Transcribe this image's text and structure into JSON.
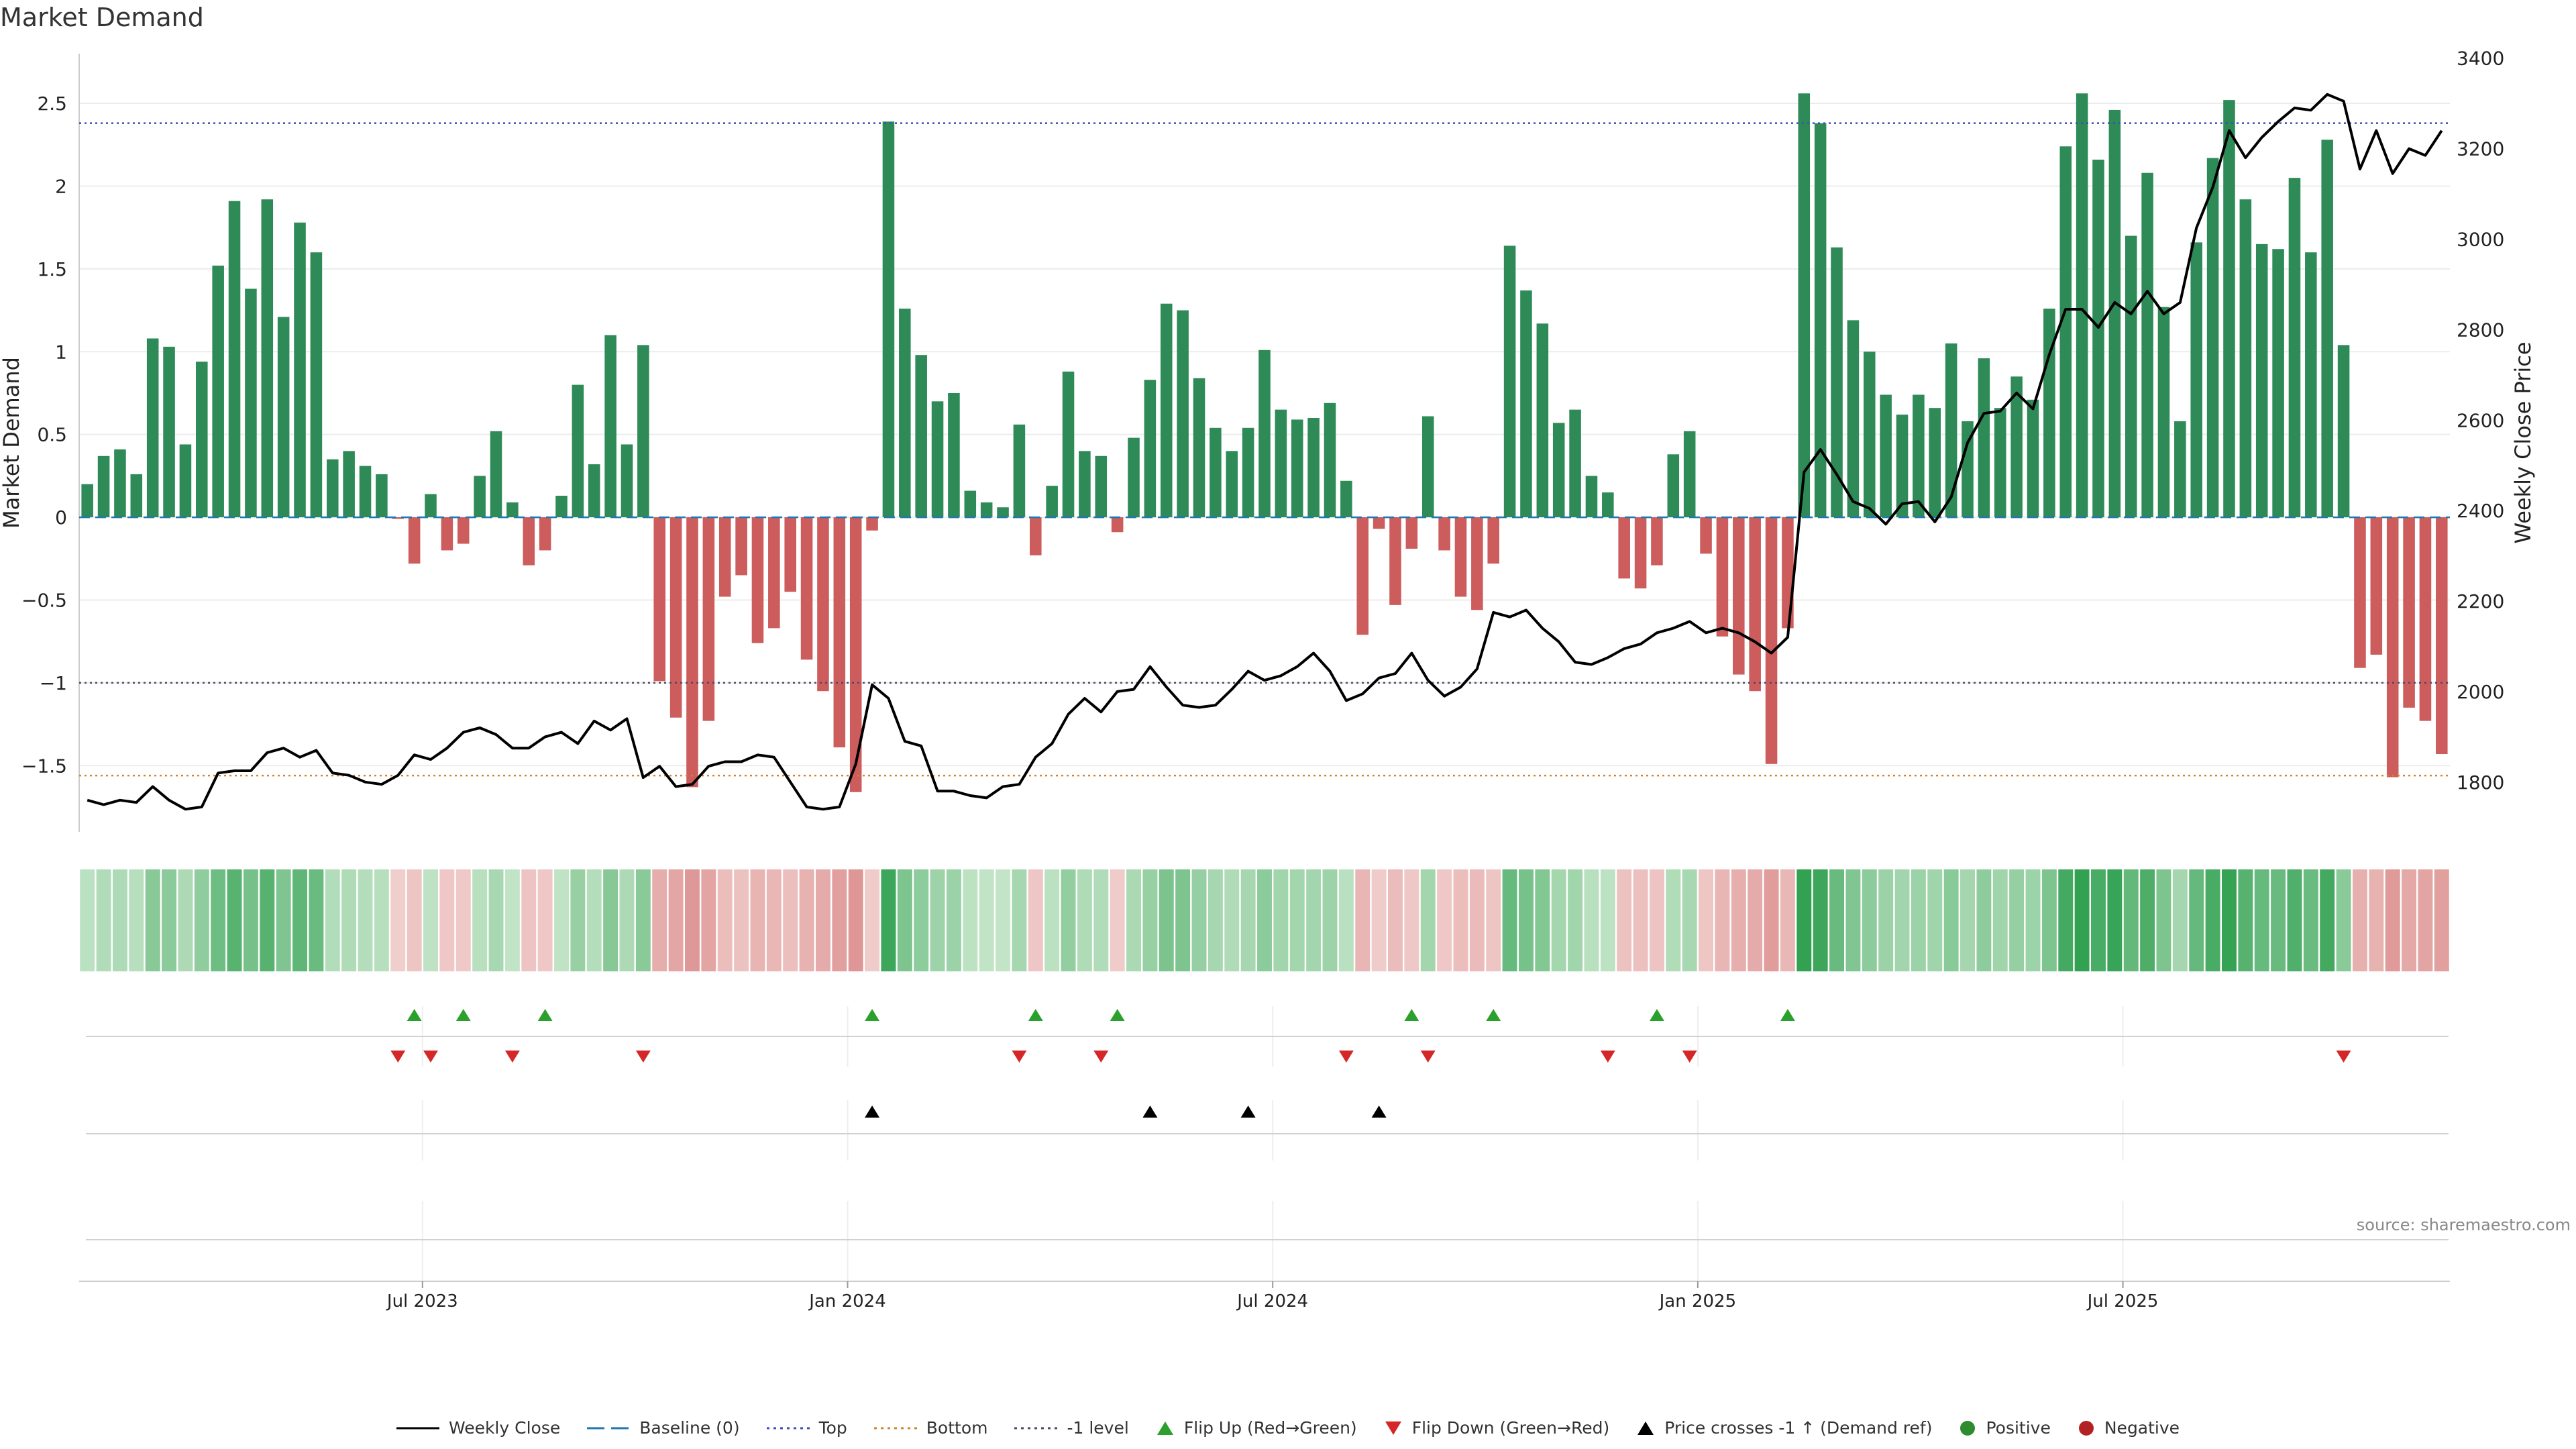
{
  "chart_data": {
    "type": "bar+line",
    "title": "Market Demand",
    "ylabel_left": "Market Demand",
    "ylabel_right": "Weekly Close Price",
    "ylim_left": [
      -1.9,
      2.8
    ],
    "ylim_right": [
      1690,
      3410
    ],
    "yticks_left": [
      2.5,
      2,
      1.5,
      1,
      0.5,
      0,
      -0.5,
      -1,
      -1.5
    ],
    "ytick_labels_left": [
      "2.5",
      "2",
      "1.5",
      "1",
      "0.5",
      "0",
      "−0.5",
      "−1",
      "−1.5"
    ],
    "yticks_right": [
      3400,
      3200,
      3000,
      2800,
      2600,
      2400,
      2200,
      2000,
      1800
    ],
    "xticks": [
      "Jul 2023",
      "Jan 2024",
      "Jul 2024",
      "Jan 2025",
      "Jul 2025"
    ],
    "xtick_week_index": [
      21,
      47,
      73,
      99,
      125
    ],
    "reference_lines": {
      "top": 2.38,
      "bottom": -1.56,
      "minus_one": -1,
      "baseline": 0
    },
    "demand": [
      0.2,
      0.37,
      0.41,
      0.26,
      1.08,
      1.03,
      0.44,
      0.94,
      1.52,
      1.91,
      1.38,
      1.92,
      1.21,
      1.78,
      1.6,
      0.35,
      0.4,
      0.31,
      0.26,
      -0.01,
      -0.28,
      0.14,
      -0.2,
      -0.16,
      0.25,
      0.52,
      0.09,
      -0.29,
      -0.2,
      0.13,
      0.8,
      0.32,
      1.1,
      0.44,
      1.04,
      -0.99,
      -1.21,
      -1.63,
      -1.23,
      -0.48,
      -0.35,
      -0.76,
      -0.67,
      -0.45,
      -0.86,
      -1.05,
      -1.39,
      -1.66,
      -0.08,
      2.39,
      1.26,
      0.98,
      0.7,
      0.75,
      0.16,
      0.09,
      0.06,
      0.56,
      -0.23,
      0.19,
      0.88,
      0.4,
      0.37,
      -0.09,
      0.48,
      0.83,
      1.29,
      1.25,
      0.84,
      0.54,
      0.4,
      0.54,
      1.01,
      0.65,
      0.59,
      0.6,
      0.69,
      0.22,
      -0.71,
      -0.07,
      -0.53,
      -0.19,
      0.61,
      -0.2,
      -0.48,
      -0.56,
      -0.28,
      1.64,
      1.37,
      1.17,
      0.57,
      0.65,
      0.25,
      0.15,
      -0.37,
      -0.43,
      -0.29,
      0.38,
      0.52,
      -0.22,
      -0.72,
      -0.95,
      -1.05,
      -1.49,
      -0.67,
      2.56,
      2.38,
      1.63,
      1.19,
      1.0,
      0.74,
      0.62,
      0.74,
      0.66,
      1.05,
      0.58,
      0.96,
      0.66,
      0.85,
      0.71,
      1.26,
      2.24,
      2.56,
      2.16,
      2.46,
      1.7,
      2.08,
      1.27,
      0.58,
      1.66,
      2.17,
      2.52,
      1.92,
      1.65,
      1.62,
      2.05,
      1.6,
      2.28,
      1.04,
      -0.91,
      -0.83,
      -1.57,
      -1.15,
      -1.23,
      -1.43
    ],
    "weekly_close": [
      1760,
      1750,
      1760,
      1755,
      1790,
      1760,
      1740,
      1745,
      1820,
      1825,
      1825,
      1865,
      1875,
      1855,
      1870,
      1820,
      1815,
      1800,
      1795,
      1815,
      1860,
      1850,
      1875,
      1910,
      1920,
      1905,
      1875,
      1875,
      1900,
      1910,
      1885,
      1935,
      1915,
      1940,
      1810,
      1835,
      1790,
      1795,
      1835,
      1845,
      1845,
      1860,
      1855,
      1800,
      1745,
      1740,
      1745,
      1840,
      2015,
      1985,
      1890,
      1880,
      1780,
      1780,
      1770,
      1765,
      1790,
      1795,
      1855,
      1885,
      1950,
      1985,
      1955,
      2000,
      2005,
      2055,
      2010,
      1970,
      1965,
      1970,
      2005,
      2045,
      2025,
      2035,
      2055,
      2085,
      2045,
      1980,
      1995,
      2030,
      2040,
      2085,
      2025,
      1990,
      2010,
      2050,
      2175,
      2165,
      2180,
      2140,
      2110,
      2065,
      2060,
      2075,
      2095,
      2105,
      2130,
      2140,
      2155,
      2130,
      2140,
      2130,
      2110,
      2085,
      2120,
      2485,
      2535,
      2480,
      2420,
      2405,
      2370,
      2415,
      2420,
      2375,
      2430,
      2550,
      2615,
      2620,
      2660,
      2625,
      2745,
      2845,
      2845,
      2805,
      2860,
      2835,
      2885,
      2835,
      2860,
      3025,
      3115,
      3240,
      3180,
      3225,
      3260,
      3290,
      3285,
      3320,
      3305,
      3155,
      3240,
      3145,
      3200,
      3185,
      3240
    ],
    "flip_up_weeks": [
      20,
      23,
      28,
      48,
      58,
      63,
      81,
      86,
      96,
      104
    ],
    "flip_down_weeks": [
      19,
      21,
      26,
      34,
      57,
      62,
      77,
      82,
      93,
      98,
      138
    ],
    "price_cross_weeks": [
      48,
      65,
      71,
      79
    ],
    "legend": [
      "Weekly Close",
      "Baseline (0)",
      "Top",
      "Bottom",
      "-1 level",
      "Flip Up (Red→Green)",
      "Flip Down (Green→Red)",
      "Price crosses -1 ↑ (Demand ref)",
      "Positive",
      "Negative"
    ]
  },
  "colors": {
    "positive": "#2e8b57",
    "negative": "#cd5c5c",
    "top": "#3a4fb5",
    "bottom": "#d2832b",
    "minus_one": "#4a4a66",
    "baseline": "#1f77b4",
    "flip_up": "#2ca02c",
    "flip_down": "#d62728",
    "cross": "#000000",
    "legend_positive": "#2e8b2e",
    "legend_negative": "#b22222"
  },
  "source": "source: sharemaestro.com"
}
